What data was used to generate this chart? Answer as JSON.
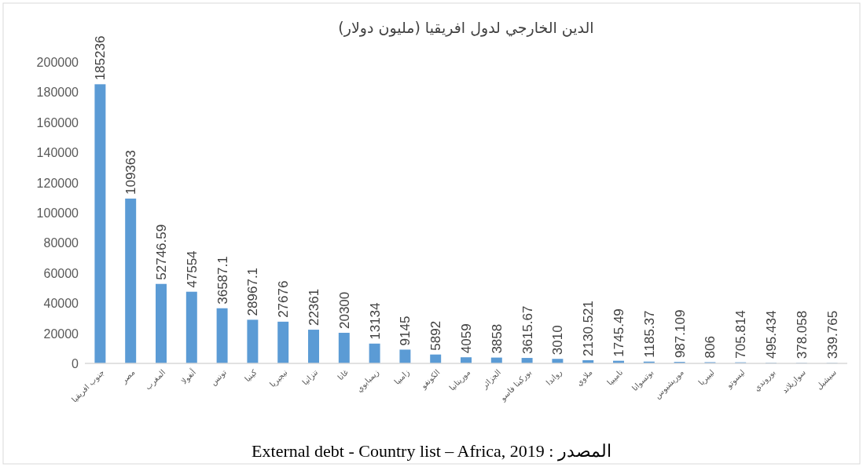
{
  "chart_data": {
    "type": "bar",
    "title": "الدين الخارجي لدول افريقيا (مليون دولار)",
    "categories": [
      "جنوب افريقيا",
      "مصر",
      "المغرب",
      "أنغولا",
      "تونس",
      "كينيا",
      "نيجيريا",
      "تنزانيا",
      "غانا",
      "زيمبابوي",
      "زامبيا",
      "الكونغو",
      "موريتانيا",
      "الجزائر",
      "بوركينا فاسو",
      "رواندا",
      "ملاوي",
      "ناميبيا",
      "بوتسوانا",
      "موريشيوس",
      "ليبيريا",
      "ليسوتو",
      "بوروندي",
      "سوازيلاند",
      "سيشيل"
    ],
    "values": [
      185236,
      109363,
      52746.59,
      47554,
      36587.1,
      28967.1,
      27676,
      22361,
      20300,
      13134,
      9145,
      5892,
      4059,
      3858,
      3615.67,
      3010,
      2130.521,
      1745.49,
      1185.37,
      987.109,
      806,
      705.814,
      495.434,
      378.058,
      339.765
    ],
    "color": "#5b9bd5",
    "data_labels": true,
    "grid": false,
    "ylim": [
      0,
      200000
    ],
    "yticks": [
      0,
      20000,
      40000,
      60000,
      80000,
      100000,
      120000,
      140000,
      160000,
      180000,
      200000
    ],
    "annotations": [
      "المصدر : External debt - Country list – Africa, 2019"
    ]
  }
}
